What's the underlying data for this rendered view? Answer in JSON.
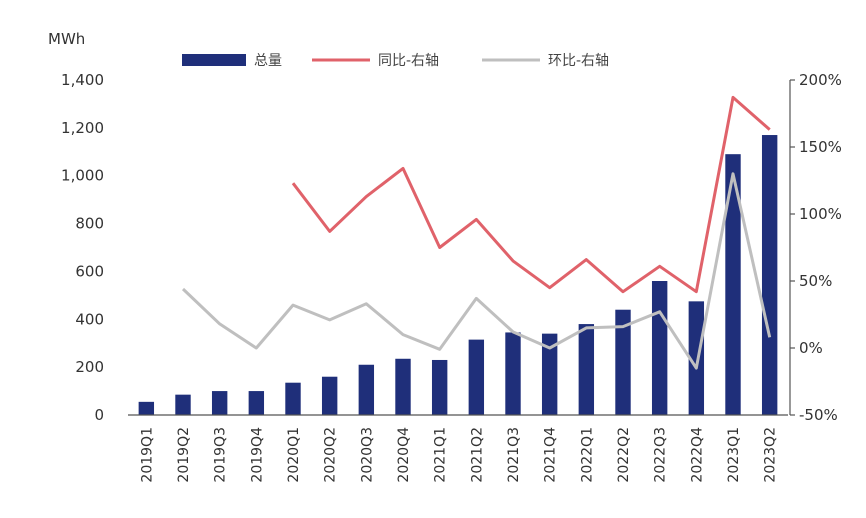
{
  "chart_data": {
    "type": "bar",
    "unit_left": "MWh",
    "categories": [
      "2019Q1",
      "2019Q2",
      "2019Q3",
      "2019Q4",
      "2020Q1",
      "2020Q2",
      "2020Q3",
      "2020Q4",
      "2021Q1",
      "2021Q2",
      "2021Q3",
      "2021Q4",
      "2022Q1",
      "2022Q2",
      "2022Q3",
      "2022Q4",
      "2023Q1",
      "2023Q2"
    ],
    "series": [
      {
        "name": "总量",
        "type": "bar",
        "axis": "left",
        "color": "#1f2f7a",
        "values": [
          55,
          85,
          100,
          100,
          135,
          160,
          210,
          235,
          230,
          315,
          345,
          340,
          380,
          440,
          560,
          475,
          1090,
          1170
        ]
      },
      {
        "name": "同比-右轴",
        "type": "line",
        "axis": "right",
        "color": "#e0626a",
        "values": [
          null,
          null,
          null,
          null,
          123,
          87,
          113,
          134,
          75,
          96,
          65,
          45,
          66,
          42,
          61,
          42,
          187,
          163
        ]
      },
      {
        "name": "环比-右轴",
        "type": "line",
        "axis": "right",
        "color": "#bfbfbf",
        "values": [
          null,
          44,
          18,
          0,
          32,
          21,
          33,
          10,
          -1,
          37,
          12,
          0,
          15,
          16,
          27,
          -15,
          130,
          8
        ]
      }
    ],
    "ylim_left": [
      0,
      1400
    ],
    "yticks_left": [
      "0",
      "200",
      "400",
      "600",
      "800",
      "1,000",
      "1,200",
      "1,400"
    ],
    "ylim_right": [
      -50,
      200
    ],
    "yticks_right": [
      "-50%",
      "0%",
      "50%",
      "100%",
      "150%",
      "200%"
    ],
    "legend_position": "top",
    "grid": false
  }
}
